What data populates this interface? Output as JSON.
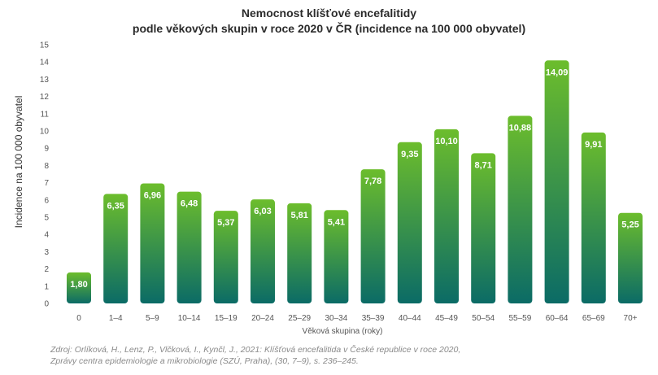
{
  "title_line1": "Nemocnost klíšťové encefalitidy",
  "title_line2": "podle věkových skupin v roce 2020 v ČR (incidence na 100 000 obyvatel)",
  "source_line1": "Zdroj: Orlíková, H., Lenz, P., Vlčková, I., Kynčl, J., 2021: Klíšťová encefalitida v České republice v roce 2020,",
  "source_line2": "Zprávy centra epidemiologie a mikrobiologie (SZÚ, Praha), (30, 7–9), s. 236–245.",
  "colors": {
    "bar_top": "#6cbd2c",
    "bar_bottom": "#0b6b66",
    "label": "#ffffff",
    "axis_text": "#555555"
  },
  "chart_data": {
    "type": "bar",
    "xlabel": "Věková skupina (roky)",
    "ylabel": "Incidence na 100 000 obyvatel",
    "ylim": [
      0,
      15
    ],
    "yticks": [
      "0",
      "1",
      "2",
      "3",
      "4",
      "5",
      "6",
      "7",
      "8",
      "9",
      "10",
      "11",
      "12",
      "13",
      "14",
      "15"
    ],
    "categories": [
      "0",
      "1–4",
      "5–9",
      "10–14",
      "15–19",
      "20–24",
      "25–29",
      "30–34",
      "35–39",
      "40–44",
      "45–49",
      "50–54",
      "55–59",
      "60–64",
      "65–69",
      "70+"
    ],
    "values": [
      1.8,
      6.35,
      6.96,
      6.48,
      5.37,
      6.03,
      5.81,
      5.41,
      7.78,
      9.35,
      10.1,
      8.71,
      10.88,
      14.09,
      9.91,
      5.25
    ],
    "value_labels": [
      "1,80",
      "6,35",
      "6,96",
      "6,48",
      "5,37",
      "6,03",
      "5,81",
      "5,41",
      "7,78",
      "9,35",
      "10,10",
      "8,71",
      "10,88",
      "14,09",
      "9,91",
      "5,25"
    ],
    "grid": false,
    "legend": "none"
  }
}
